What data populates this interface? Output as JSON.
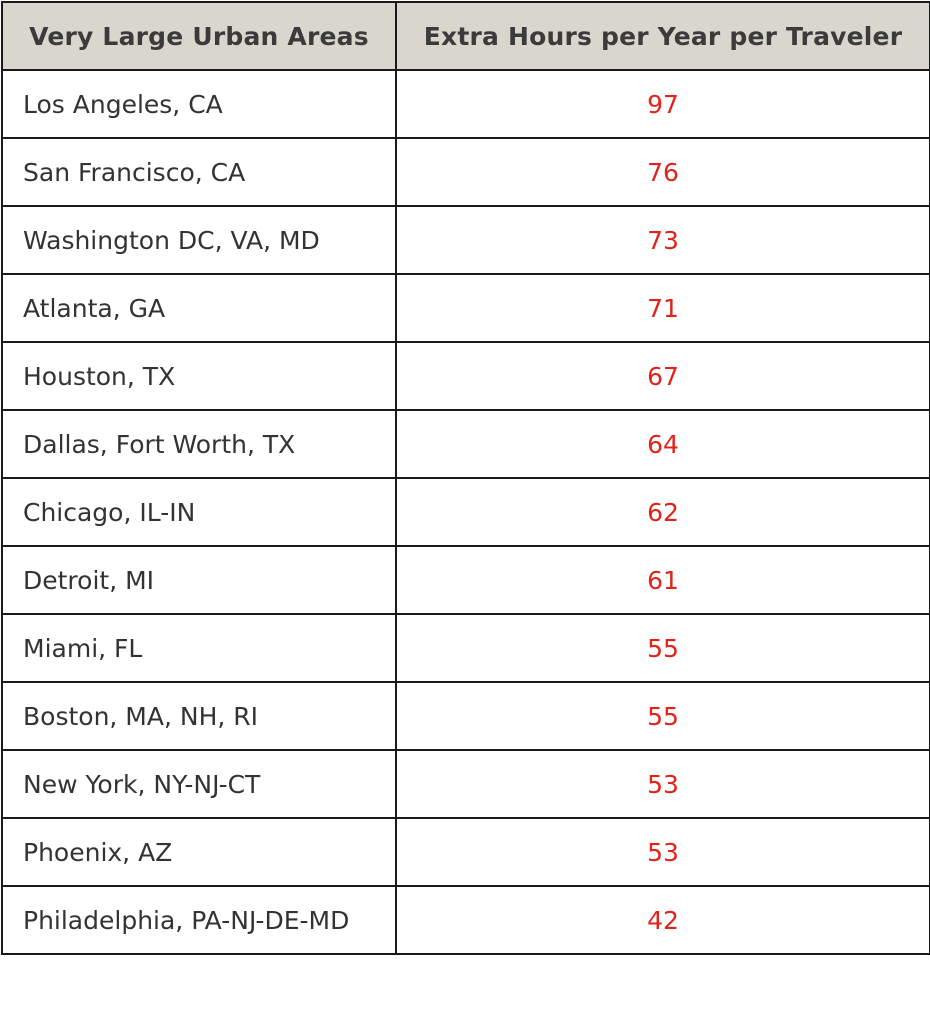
{
  "table": {
    "headers": [
      "Very Large Urban Areas",
      "Extra Hours per Year per Traveler"
    ],
    "value_color": "#e2231a",
    "header_bg": "#d9d6ce",
    "rows": [
      {
        "area": "Los Angeles, CA",
        "hours": "97"
      },
      {
        "area": "San Francisco, CA",
        "hours": "76"
      },
      {
        "area": "Washington DC, VA, MD",
        "hours": "73"
      },
      {
        "area": "Atlanta, GA",
        "hours": "71"
      },
      {
        "area": "Houston, TX",
        "hours": "67"
      },
      {
        "area": "Dallas, Fort Worth, TX",
        "hours": "64"
      },
      {
        "area": "Chicago, IL-IN",
        "hours": "62"
      },
      {
        "area": "Detroit, MI",
        "hours": "61"
      },
      {
        "area": "Miami, FL",
        "hours": "55"
      },
      {
        "area": "Boston, MA, NH, RI",
        "hours": "55"
      },
      {
        "area": "New York, NY-NJ-CT",
        "hours": "53"
      },
      {
        "area": "Phoenix, AZ",
        "hours": "53"
      },
      {
        "area": "Philadelphia, PA-NJ-DE-MD",
        "hours": "42"
      }
    ]
  }
}
